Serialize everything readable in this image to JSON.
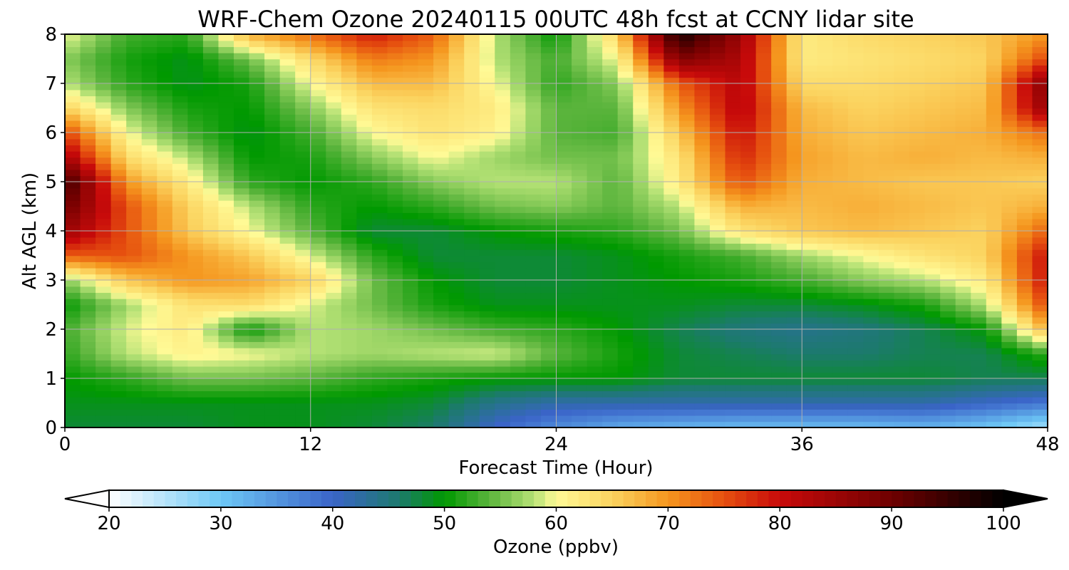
{
  "chart_data": {
    "type": "heatmap",
    "title": "WRF-Chem Ozone  20240115 00UTC 48h fcst at CCNY lidar site",
    "xlabel": "Forecast Time (Hour)",
    "ylabel": "Alt AGL (km)",
    "xlim": [
      0,
      48
    ],
    "ylim": [
      0,
      8
    ],
    "xticks": [
      0,
      12,
      24,
      36,
      48
    ],
    "yticks": [
      0,
      1,
      2,
      3,
      4,
      5,
      6,
      7,
      8
    ],
    "grid": true,
    "hours": [
      0,
      3,
      6,
      9,
      12,
      15,
      18,
      21,
      24,
      27,
      30,
      33,
      36,
      39,
      42,
      45,
      48
    ],
    "altitudes_km": [
      0,
      0.5,
      1,
      1.5,
      2,
      2.5,
      3,
      3.5,
      4,
      4.5,
      5,
      5.5,
      6,
      6.5,
      7,
      7.5,
      8
    ],
    "values": [
      [
        48,
        48,
        48,
        49,
        49,
        48,
        46,
        40,
        36,
        33,
        32,
        31,
        31,
        31,
        32,
        30,
        26
      ],
      [
        49,
        49,
        49,
        49,
        49,
        49,
        48,
        44,
        42,
        42,
        42,
        42,
        42,
        42,
        42,
        40,
        38
      ],
      [
        50,
        52,
        55,
        55,
        54,
        52,
        51,
        50,
        50,
        50,
        48,
        48,
        48,
        48,
        48,
        47,
        47
      ],
      [
        52,
        58,
        61,
        60,
        58,
        57,
        58,
        59,
        54,
        51,
        48,
        47,
        46,
        46,
        47,
        47,
        52
      ],
      [
        53,
        59,
        62,
        50,
        58,
        57,
        55,
        53,
        52,
        50,
        47,
        45,
        44,
        45,
        47,
        50,
        68
      ],
      [
        50,
        57,
        63,
        64,
        59,
        55,
        51,
        49,
        49,
        49,
        49,
        48,
        48,
        49,
        51,
        58,
        76
      ],
      [
        56,
        66,
        70,
        69,
        65,
        55,
        50,
        48,
        48,
        49,
        50,
        51,
        53,
        56,
        58,
        62,
        80
      ],
      [
        74,
        75,
        70,
        66,
        59,
        52,
        48,
        48,
        48,
        49,
        51,
        53,
        57,
        60,
        63,
        65,
        80
      ],
      [
        85,
        75,
        66,
        60,
        54,
        48,
        48,
        50,
        51,
        52,
        55,
        63,
        66,
        67,
        66,
        65,
        74
      ],
      [
        90,
        75,
        65,
        58,
        52,
        50,
        52,
        55,
        56,
        54,
        58,
        68,
        67,
        68,
        67,
        66,
        68
      ],
      [
        95,
        70,
        62,
        52,
        50,
        52,
        56,
        58,
        58,
        54,
        62,
        75,
        68,
        67,
        66,
        66,
        65
      ],
      [
        84,
        64,
        58,
        50,
        51,
        56,
        60,
        57,
        55,
        55,
        63,
        78,
        69,
        67,
        68,
        67,
        68
      ],
      [
        76,
        60,
        53,
        49,
        53,
        60,
        63,
        61,
        54,
        53,
        66,
        80,
        68,
        66,
        67,
        68,
        73
      ],
      [
        65,
        56,
        51,
        50,
        56,
        63,
        64,
        62,
        54,
        54,
        70,
        82,
        67,
        65,
        66,
        67,
        86
      ],
      [
        58,
        52,
        49,
        51,
        60,
        67,
        67,
        60,
        52,
        56,
        74,
        82,
        64,
        64,
        65,
        66,
        88
      ],
      [
        56,
        51,
        49,
        55,
        64,
        72,
        70,
        58,
        53,
        60,
        88,
        83,
        62,
        63,
        64,
        65,
        76
      ],
      [
        60,
        53,
        52,
        68,
        73,
        79,
        74,
        58,
        50,
        65,
        98,
        85,
        62,
        64,
        65,
        66,
        70
      ]
    ],
    "colorbar": {
      "label": "Ozone  (ppbv)",
      "min": 20,
      "max": 100,
      "ticks": [
        20,
        30,
        40,
        50,
        60,
        70,
        80,
        90,
        100
      ],
      "extend": "both",
      "color_stops": [
        {
          "v": 20,
          "c": "#ffffff"
        },
        {
          "v": 30,
          "c": "#6ec8f6"
        },
        {
          "v": 40,
          "c": "#3a64c8"
        },
        {
          "v": 46,
          "c": "#1c7a6c"
        },
        {
          "v": 50,
          "c": "#009900"
        },
        {
          "v": 54,
          "c": "#5ab43c"
        },
        {
          "v": 58,
          "c": "#b6e276"
        },
        {
          "v": 60,
          "c": "#fffa96"
        },
        {
          "v": 65,
          "c": "#fbd35f"
        },
        {
          "v": 70,
          "c": "#f5961e"
        },
        {
          "v": 75,
          "c": "#e6500f"
        },
        {
          "v": 80,
          "c": "#c80a0a"
        },
        {
          "v": 90,
          "c": "#6e0000"
        },
        {
          "v": 100,
          "c": "#000000"
        }
      ]
    }
  }
}
